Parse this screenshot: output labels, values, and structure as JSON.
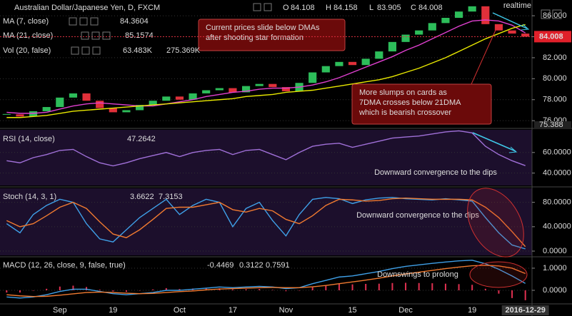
{
  "chart_data": [
    {
      "type": "candlestick",
      "title": "Australian Dollar/Japanese Yen, D, FXCM",
      "ohlc_labels": [
        "O",
        "H",
        "L",
        "C"
      ],
      "last_bar": {
        "open": 84.108,
        "high": 84.158,
        "low": 83.905
      },
      "status": "realtime",
      "categories": [
        null,
        null,
        null,
        null,
        "Sep",
        null,
        null,
        null,
        "19",
        null,
        null,
        null,
        null,
        "Oct",
        null,
        null,
        null,
        "17",
        null,
        null,
        null,
        "Nov",
        null,
        null,
        null,
        null,
        "15",
        null,
        null,
        null,
        "Dec",
        null,
        null,
        null,
        null,
        "19",
        null,
        null,
        null,
        "2016-12-29"
      ],
      "up_color": "#2dbd5a",
      "down_color": "#e0303a",
      "series": [
        {
          "color": "#2dbd5a",
          "values": [
            76.6,
            76.4,
            76.9,
            77.3,
            78.2,
            78.6,
            77.9,
            77.2,
            76.8,
            77.0,
            77.5,
            77.9,
            78.3,
            78.0,
            78.6,
            78.9,
            79.1,
            78.7,
            79.3,
            79.5,
            79.2,
            78.8,
            79.6,
            80.6,
            81.2,
            81.6,
            81.3,
            81.9,
            82.6,
            83.5,
            84.2,
            84.6,
            85.3,
            85.8,
            86.4,
            86.9,
            85.2,
            84.6,
            84.3,
            84.008
          ]
        },
        {
          "name": "MA (7, close)",
          "color": "#e040d0",
          "values": [
            76.8,
            76.7,
            76.7,
            76.8,
            77.1,
            77.4,
            77.6,
            77.7,
            77.6,
            77.5,
            77.4,
            77.4,
            77.6,
            77.8,
            78.0,
            78.3,
            78.5,
            78.7,
            78.8,
            79.0,
            79.1,
            79.1,
            79.2,
            79.4,
            79.7,
            80.1,
            80.6,
            81.1,
            81.6,
            82.1,
            82.7,
            83.2,
            83.8,
            84.4,
            85.0,
            85.5,
            85.6,
            85.5,
            85.1,
            84.3604
          ]
        },
        {
          "name": "MA (21, close)",
          "color": "#e8e800",
          "values": [
            76.3,
            76.3,
            76.4,
            76.5,
            76.7,
            76.9,
            77.0,
            77.1,
            77.2,
            77.3,
            77.4,
            77.5,
            77.6,
            77.7,
            77.8,
            77.9,
            78.0,
            78.1,
            78.3,
            78.4,
            78.5,
            78.7,
            78.8,
            78.9,
            79.1,
            79.3,
            79.5,
            79.7,
            79.9,
            80.2,
            80.6,
            81.0,
            81.5,
            82.0,
            82.6,
            83.2,
            83.8,
            84.3,
            84.8,
            85.1574
          ]
        }
      ],
      "volume": {
        "name": "Vol (20, false)",
        "value_texts": [
          "63.483K",
          "275.369K"
        ],
        "axis_label": "75.388"
      },
      "ylim": [
        75.4,
        87.5
      ],
      "yticks": [
        {
          "value": 76,
          "label": "76.000"
        },
        {
          "value": 78,
          "label": "78.000"
        },
        {
          "value": 80,
          "label": "80.000"
        },
        {
          "value": 82,
          "label": "82.000"
        },
        {
          "value": 84,
          "label": "84.000"
        },
        {
          "value": 86,
          "label": "86.000"
        }
      ],
      "annotations": [
        {
          "lines": [
            "Current prices slide below DMAs",
            "after shooting star formation"
          ]
        },
        {
          "lines": [
            "More slumps on cards as",
            "7DMA crosses below 21DMA",
            "which is bearish crossover"
          ]
        }
      ]
    },
    {
      "type": "line",
      "title": "RSI (14, close)",
      "series": [
        {
          "color": "#a070d8",
          "values": [
            52,
            50,
            55,
            58,
            62,
            63,
            56,
            50,
            47,
            50,
            54,
            57,
            60,
            56,
            60,
            62,
            63,
            58,
            62,
            63,
            58,
            53,
            60,
            66,
            68,
            69,
            65,
            68,
            71,
            74,
            75,
            76,
            78,
            80,
            81,
            79,
            66,
            58,
            52,
            47.2642
          ]
        }
      ],
      "ylim": [
        28,
        82
      ],
      "yticks": [
        {
          "value": 40,
          "label": "40.0000"
        },
        {
          "value": 60,
          "label": "60.0000"
        }
      ],
      "annotations": [
        {
          "lines": [
            "Downward convergence to the dips"
          ]
        }
      ]
    },
    {
      "type": "line",
      "title": "Stoch (14, 3, 1)",
      "series": [
        {
          "color": "#3fa0e8",
          "values": [
            45,
            30,
            60,
            75,
            85,
            80,
            45,
            20,
            15,
            35,
            55,
            70,
            85,
            60,
            75,
            85,
            80,
            40,
            70,
            80,
            50,
            25,
            60,
            85,
            88,
            86,
            78,
            84,
            87,
            88,
            86,
            85,
            84,
            86,
            84,
            82,
            55,
            30,
            10,
            3.6622
          ]
        },
        {
          "color": "#f07a30",
          "values": [
            50,
            40,
            45,
            58,
            72,
            80,
            70,
            48,
            28,
            22,
            35,
            52,
            70,
            72,
            72,
            76,
            80,
            68,
            64,
            70,
            66,
            52,
            45,
            58,
            75,
            85,
            84,
            82,
            83,
            86,
            87,
            86,
            85,
            85,
            85,
            84,
            72,
            55,
            32,
            7.3153
          ]
        }
      ],
      "ylim": [
        -7,
        103
      ],
      "yticks": [
        {
          "value": 0,
          "label": "0.0000"
        },
        {
          "value": 40,
          "label": "40.0000"
        },
        {
          "value": 80,
          "label": "80.0000"
        }
      ],
      "annotations": [
        {
          "lines": [
            "Downward convergence to the dips"
          ]
        }
      ]
    },
    {
      "type": "line",
      "title": "MACD (12, 26, close, 9, false, true)",
      "series": [
        {
          "type": "bar",
          "color": "#e03050",
          "values": [
            -0.1,
            -0.1,
            -0.02,
            0.07,
            0.17,
            0.21,
            0.15,
            0.03,
            -0.05,
            -0.07,
            0,
            0.04,
            0.1,
            0.06,
            0.08,
            0.08,
            0.09,
            0.04,
            0.05,
            0.06,
            0.02,
            -0.04,
            0,
            0.14,
            0.23,
            0.3,
            0.27,
            0.29,
            0.3,
            0.33,
            0.34,
            0.33,
            0.32,
            0.3,
            0.28,
            0.25,
            0.07,
            -0.15,
            -0.35,
            -0.4469
          ]
        },
        {
          "color": "#3fa0e8",
          "values": [
            -0.3,
            -0.35,
            -0.3,
            -0.2,
            -0.05,
            0.05,
            0.05,
            -0.05,
            -0.15,
            -0.2,
            -0.15,
            -0.1,
            0,
            0,
            0.05,
            0.1,
            0.15,
            0.12,
            0.15,
            0.18,
            0.15,
            0.08,
            0.12,
            0.3,
            0.45,
            0.6,
            0.65,
            0.75,
            0.85,
            0.98,
            1.08,
            1.15,
            1.22,
            1.28,
            1.33,
            1.36,
            1.2,
            0.95,
            0.65,
            0.3122
          ]
        },
        {
          "color": "#f07a30",
          "values": [
            -0.2,
            -0.25,
            -0.28,
            -0.27,
            -0.22,
            -0.16,
            -0.1,
            -0.08,
            -0.1,
            -0.13,
            -0.15,
            -0.14,
            -0.1,
            -0.06,
            -0.03,
            0.02,
            0.06,
            0.08,
            0.1,
            0.12,
            0.13,
            0.12,
            0.12,
            0.16,
            0.22,
            0.3,
            0.38,
            0.46,
            0.55,
            0.65,
            0.74,
            0.82,
            0.9,
            0.98,
            1.05,
            1.11,
            1.13,
            1.1,
            1.0,
            0.7591
          ]
        }
      ],
      "ylim": [
        -0.58,
        1.45
      ],
      "yticks": [
        {
          "value": 0,
          "label": "0.0000"
        },
        {
          "value": 1,
          "label": "1.0000"
        }
      ],
      "annotations": [
        {
          "lines": [
            "Downswings to prolong"
          ]
        }
      ]
    }
  ]
}
